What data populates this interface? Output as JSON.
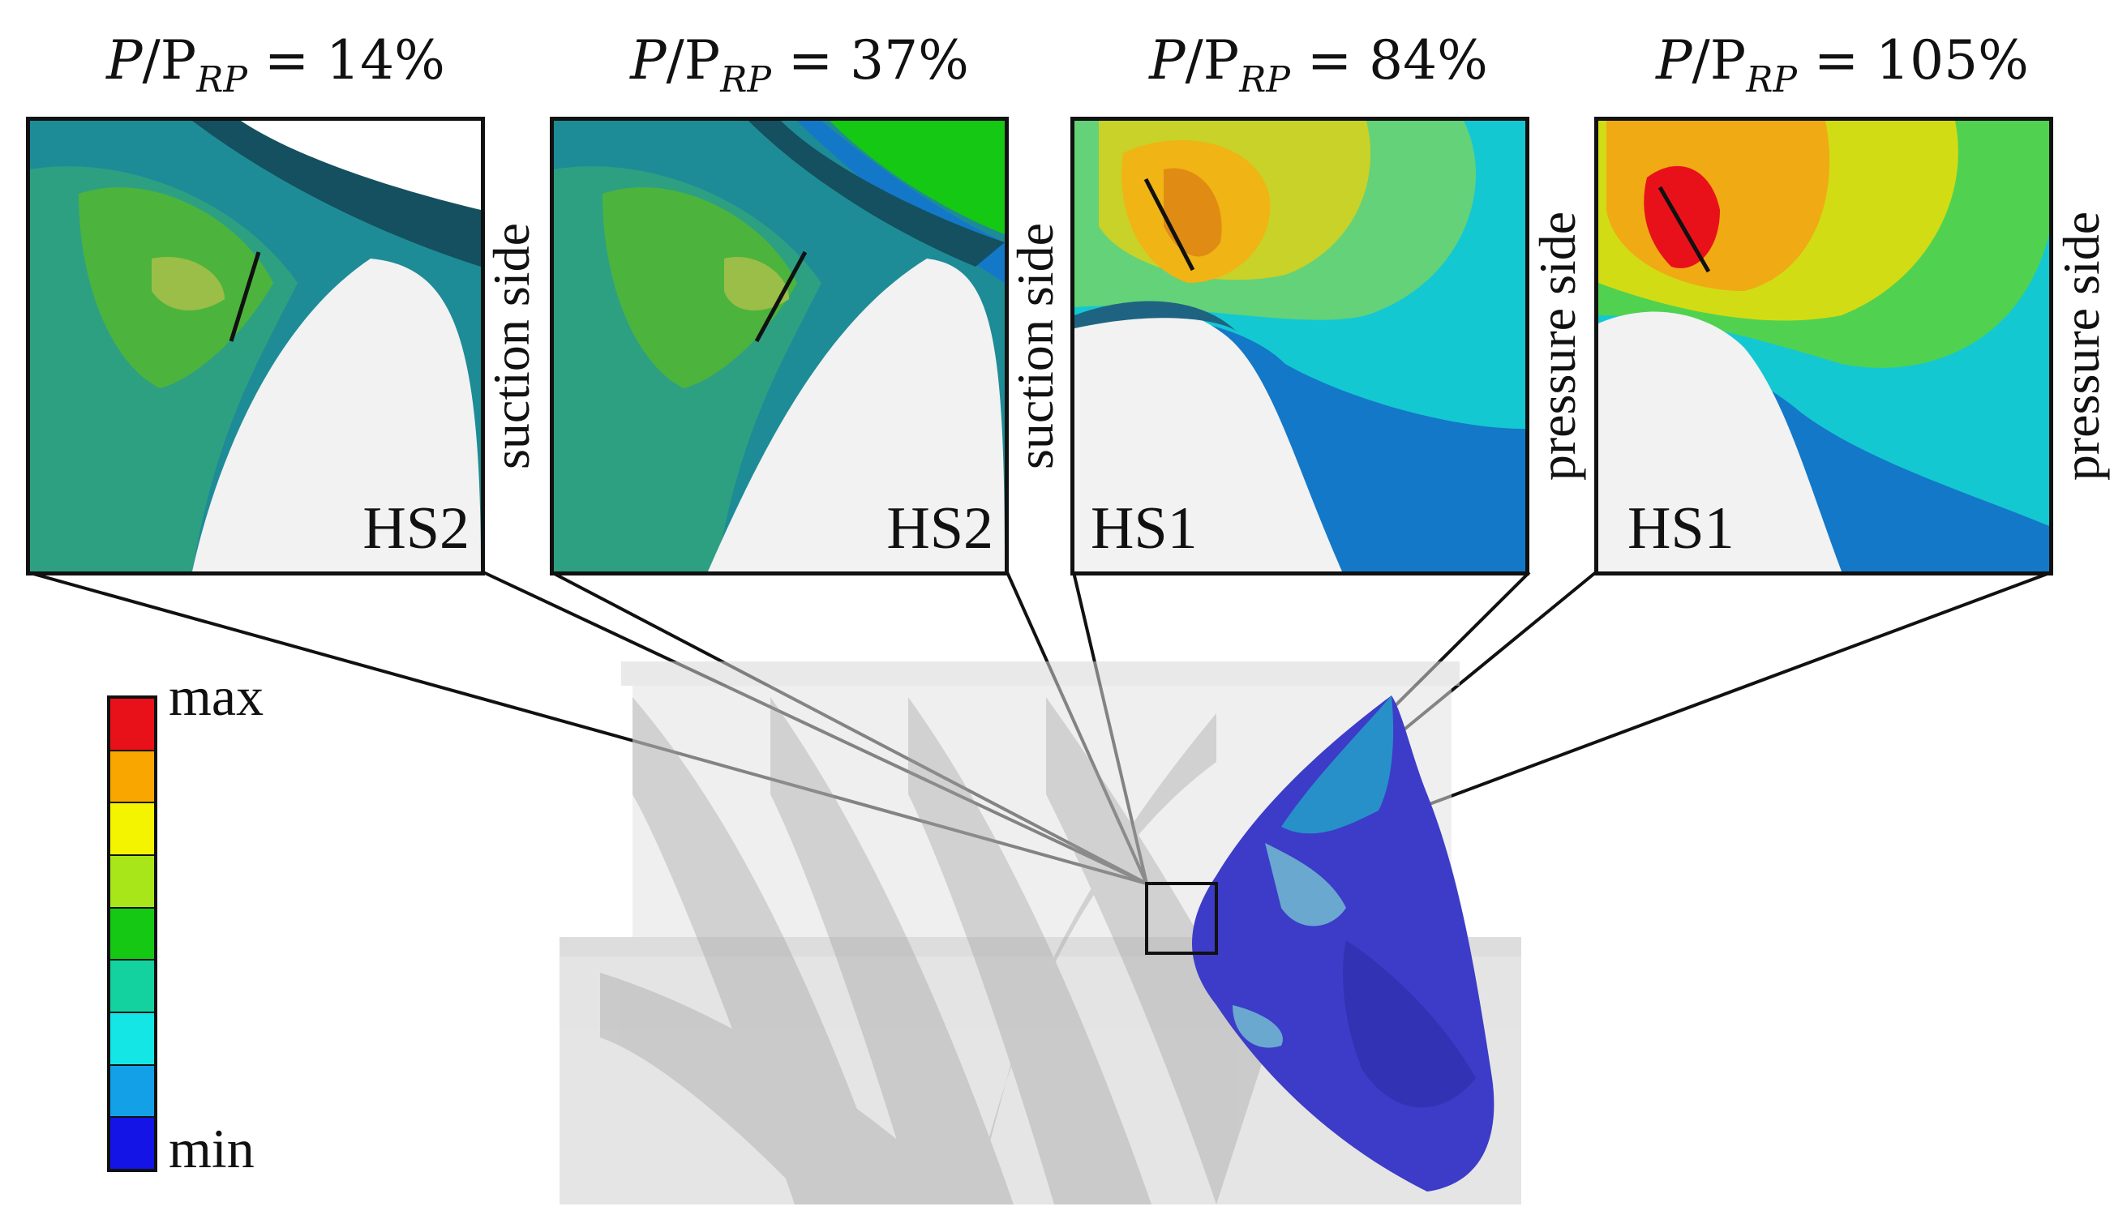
{
  "panels": [
    {
      "title_var": "P",
      "title_den": "/P",
      "title_sub": "RP",
      "title_value": "= 14%",
      "hotspot": "HS2",
      "side": "suction side"
    },
    {
      "title_var": "P",
      "title_den": "/P",
      "title_sub": "RP",
      "title_value": "= 37%",
      "hotspot": "HS2",
      "side": "suction side"
    },
    {
      "title_var": "P",
      "title_den": "/P",
      "title_sub": "RP",
      "title_value": "= 84%",
      "hotspot": "HS1",
      "side": "pressure side"
    },
    {
      "title_var": "P",
      "title_den": "/P",
      "title_sub": "RP",
      "title_value": "= 105%",
      "hotspot": "HS1",
      "side": "pressure side"
    }
  ],
  "legend": {
    "max_label": "max",
    "min_label": "min",
    "colors": [
      "#e8111a",
      "#f9a600",
      "#f4f400",
      "#a8e61a",
      "#14c814",
      "#14d2a0",
      "#14e6e6",
      "#14a0e6",
      "#1414e6"
    ]
  },
  "contour_colors": {
    "panel1": [
      "#1e8c96",
      "#2ea082",
      "#4cb43c",
      "#7dc83c"
    ],
    "panel2": [
      "#1e8c96",
      "#2ea082",
      "#4cb43c",
      "#7dc83c"
    ],
    "panel3": [
      "#1478c8",
      "#14c8d2",
      "#64d278",
      "#c8d228",
      "#f0b414",
      "#e08c14"
    ],
    "panel4": [
      "#1478c8",
      "#14c8d2",
      "#50d250",
      "#d2dc14",
      "#f0aa14",
      "#e8111a"
    ]
  }
}
